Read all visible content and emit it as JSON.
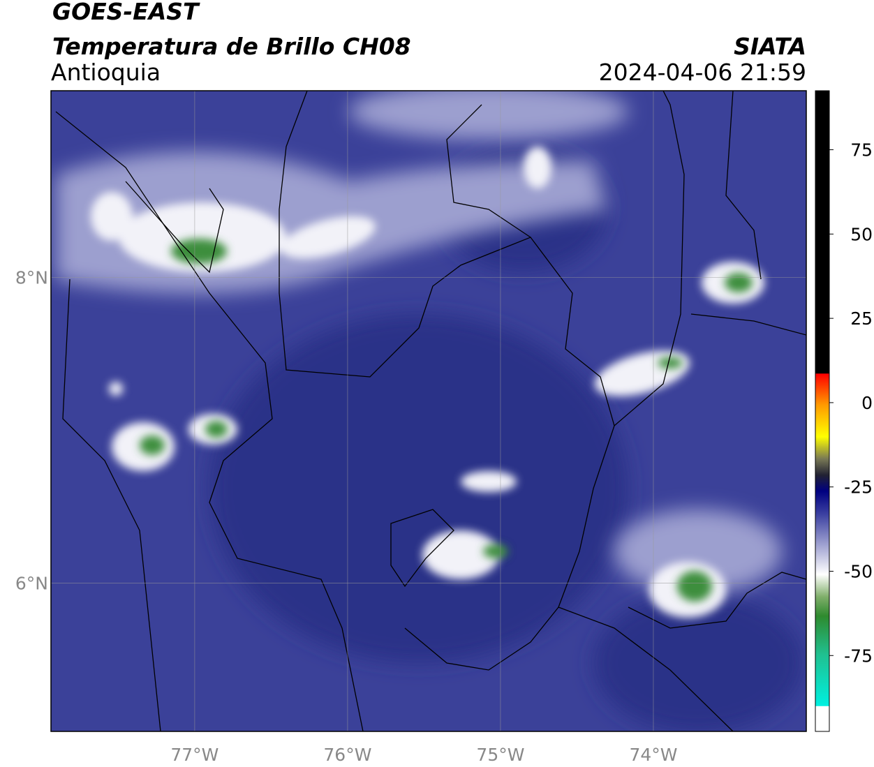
{
  "header": {
    "title": "GOES-EAST",
    "subtitle": "Temperatura de Brillo CH08",
    "source": "SIATA",
    "region": "Antioquia",
    "datetime": "2024-04-06 21:59"
  },
  "map": {
    "lonlim": [
      -77.94,
      -73.0
    ],
    "latlim": [
      5.03,
      9.22
    ],
    "lonticks": [
      {
        "value": -77,
        "label": "77°W"
      },
      {
        "value": -76,
        "label": "76°W"
      },
      {
        "value": -75,
        "label": "75°W"
      },
      {
        "value": -74,
        "label": "74°W"
      }
    ],
    "latticks": [
      {
        "value": 6,
        "label": "6°N"
      },
      {
        "value": 8,
        "label": "8°N"
      }
    ]
  },
  "colorbar": {
    "lim": [
      -97.5,
      92.5
    ],
    "ticks": [
      -75,
      -50,
      -25,
      0,
      25,
      50,
      75
    ]
  }
}
